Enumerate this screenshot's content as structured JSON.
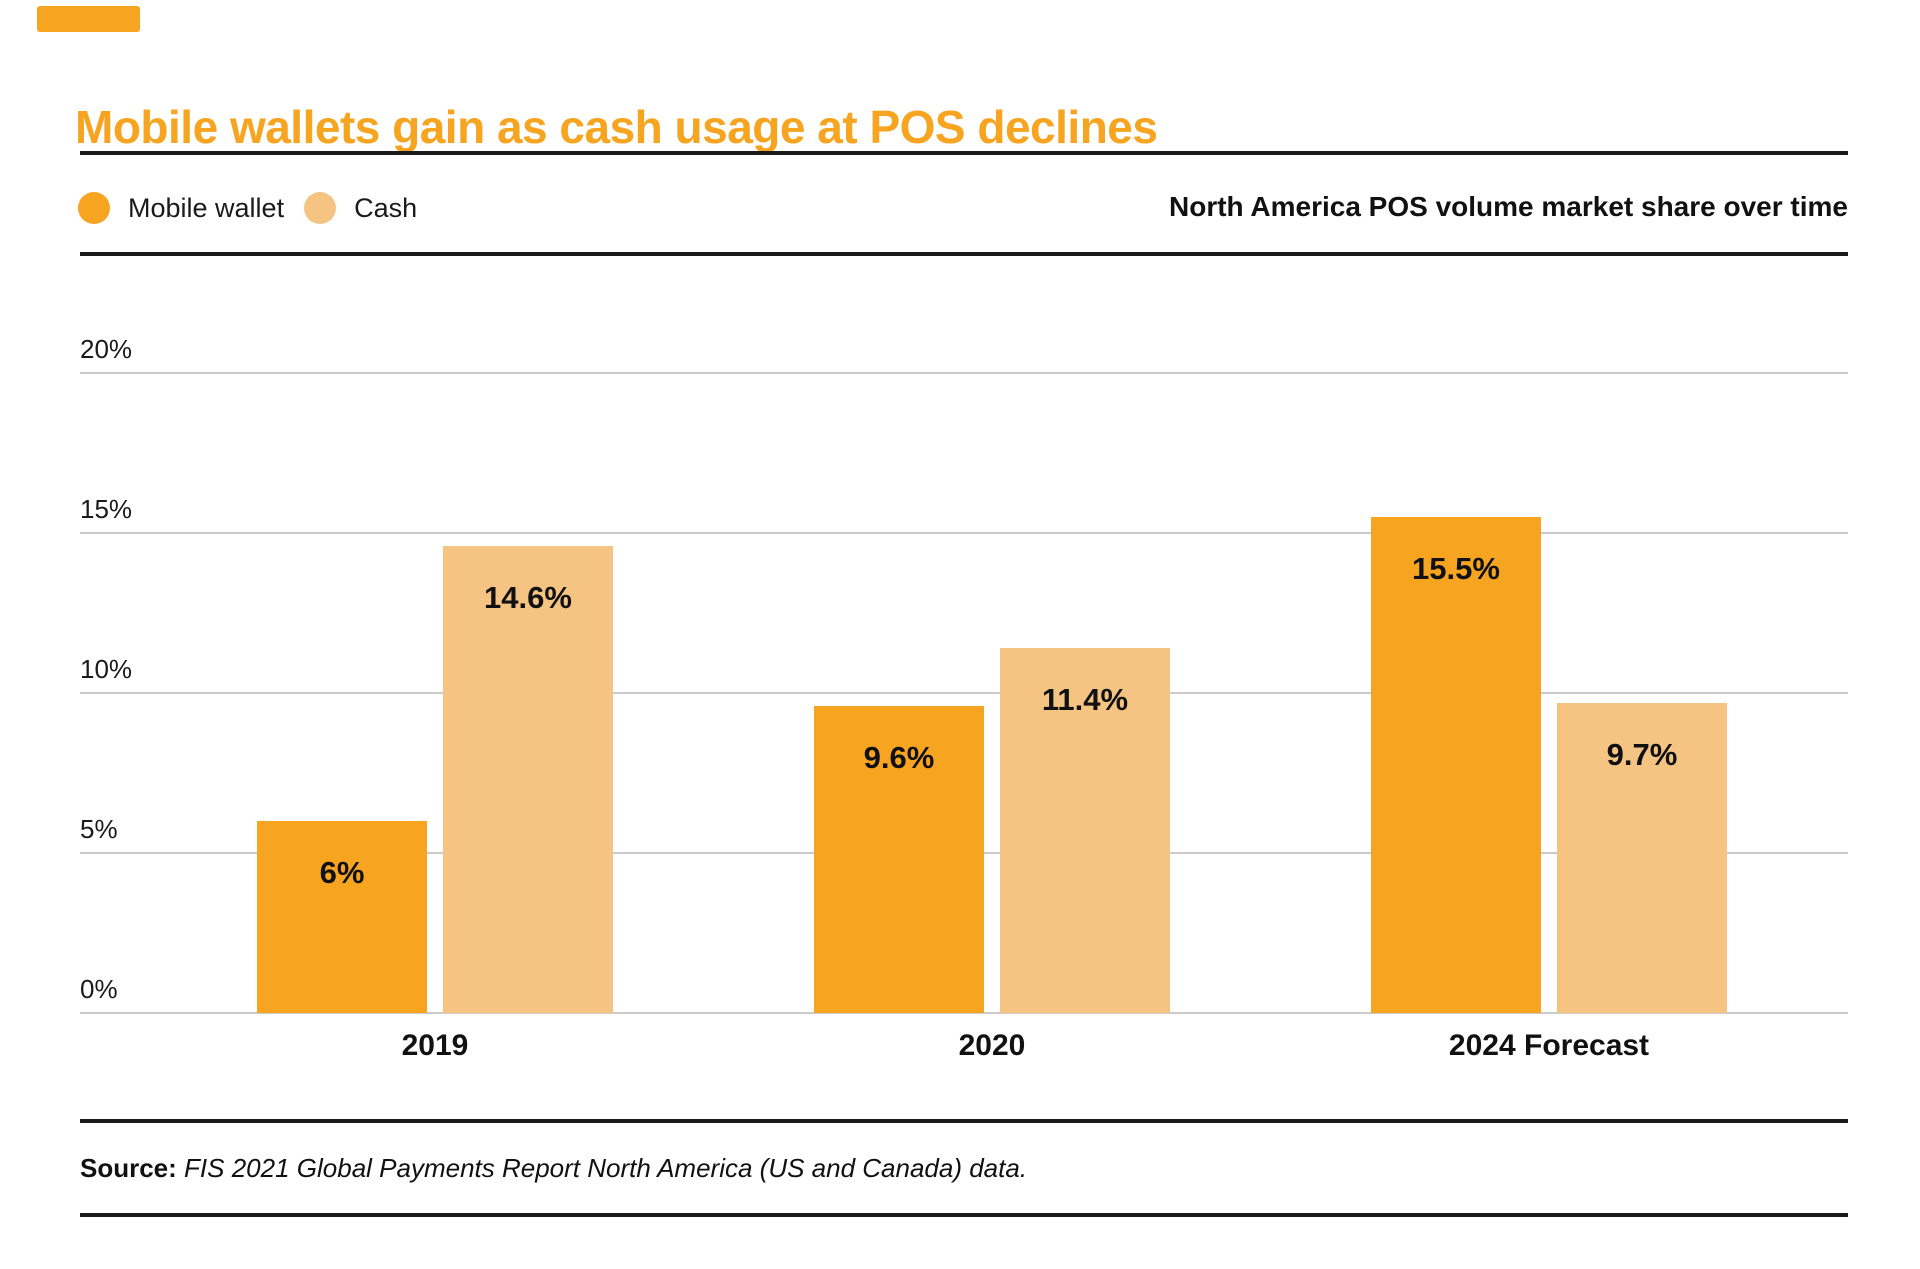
{
  "colors": {
    "accent_orange": "#F7A421",
    "cash_light_orange": "#F5C483",
    "gridline_gray": "#CBCBCB",
    "rule_black": "#1A1A1A"
  },
  "title": "Mobile wallets gain as cash usage at POS declines",
  "header": {
    "subtitle": "North America POS volume market share over time"
  },
  "legend": {
    "items": [
      {
        "label": "Mobile wallet",
        "color": "#F7A421"
      },
      {
        "label": "Cash",
        "color": "#F5C483"
      }
    ]
  },
  "chart_data": {
    "type": "bar",
    "title": "Mobile wallets gain as cash usage at POS declines",
    "subtitle": "North America POS volume market share over time",
    "categories": [
      "2019",
      "2020",
      "2024 Forecast"
    ],
    "series": [
      {
        "name": "Mobile wallet",
        "color": "#F7A421",
        "values": [
          6,
          9.6,
          15.5
        ],
        "labels": [
          "6%",
          "9.6%",
          "15.5%"
        ]
      },
      {
        "name": "Cash",
        "color": "#F5C483",
        "values": [
          14.6,
          11.4,
          9.7
        ],
        "labels": [
          "14.6%",
          "11.4%",
          "9.7%"
        ]
      }
    ],
    "xlabel": "",
    "ylabel": "",
    "ylim": [
      0,
      20
    ],
    "y_ticks": [
      {
        "value": 0,
        "label": "0%"
      },
      {
        "value": 5,
        "label": "5%"
      },
      {
        "value": 10,
        "label": "10%"
      },
      {
        "value": 15,
        "label": "15%"
      },
      {
        "value": 20,
        "label": "20%"
      }
    ],
    "grid": "horizontal",
    "legend_position": "top-left",
    "value_labels": "inside-top"
  },
  "source": {
    "prefix": "Source:",
    "text": "FIS 2021 Global Payments Report North America (US and Canada) data."
  }
}
